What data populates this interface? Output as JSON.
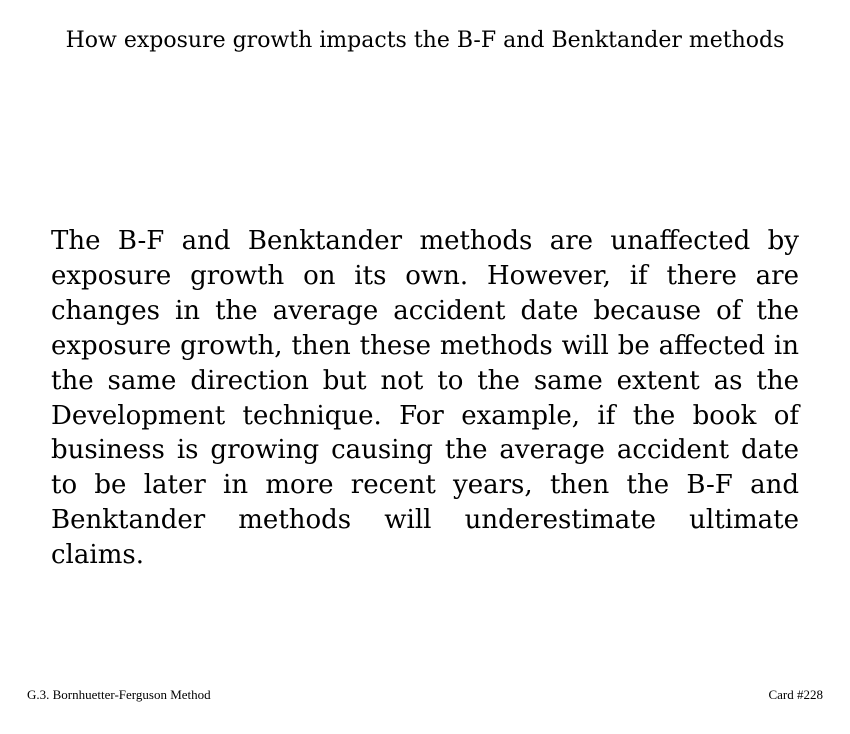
{
  "card": {
    "title": "How exposure growth impacts the B-F and Benktander methods",
    "body": "The B-F and Benktander methods are unaffected by exposure growth on its own.  However, if there are changes in the average accident date because of the exposure growth, then these methods will be affected in the same direction but not to the same extent as the Development technique.  For example, if the book of business is growing causing the average accident date to be later in more recent years, then the B-F and Benktander methods will underestimate ultimate claims."
  },
  "footer": {
    "section": "G.3. Bornhuetter-Ferguson Method",
    "card_number": "Card #228"
  }
}
